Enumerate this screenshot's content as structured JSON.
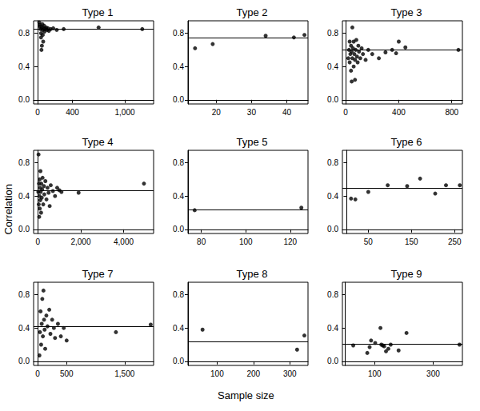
{
  "xlabel": "Sample size",
  "ylabel": "Correlation",
  "chart_data": [
    {
      "type": "scatter",
      "title": "Type 1",
      "color": "#000000",
      "reference_line": 0.85,
      "x": [
        20,
        25,
        30,
        35,
        40,
        40,
        45,
        50,
        50,
        55,
        60,
        60,
        65,
        70,
        75,
        80,
        90,
        100,
        110,
        120,
        130,
        150,
        180,
        220,
        300,
        700,
        1200
      ],
      "values": [
        0.93,
        0.9,
        0.88,
        0.85,
        0.8,
        0.75,
        0.6,
        0.65,
        0.87,
        0.91,
        0.84,
        0.78,
        0.7,
        0.86,
        0.89,
        0.82,
        0.85,
        0.87,
        0.84,
        0.86,
        0.83,
        0.85,
        0.86,
        0.84,
        0.85,
        0.87,
        0.85
      ],
      "xlim": [
        -45,
        1330
      ],
      "xticks": [
        0,
        400,
        {
          "value": 1000,
          "label": "1,000"
        }
      ],
      "ylim": [
        -0.05,
        0.95
      ],
      "yticks": [
        {
          "value": 0,
          "label": "0.0"
        },
        0.4,
        0.8
      ]
    },
    {
      "type": "scatter",
      "title": "Type 2",
      "color": "#000000",
      "reference_line": 0.75,
      "x": [
        14,
        19,
        34,
        42,
        45
      ],
      "values": [
        0.62,
        0.67,
        0.77,
        0.75,
        0.78
      ],
      "xlim": [
        12,
        46
      ],
      "xticks": [
        20,
        30,
        40
      ],
      "ylim": [
        -0.05,
        0.95
      ],
      "yticks": [
        {
          "value": 0,
          "label": "0.0"
        },
        0.4,
        0.8
      ]
    },
    {
      "type": "scatter",
      "title": "Type 3",
      "color": "#000000",
      "reference_line": 0.6,
      "x": [
        20,
        25,
        30,
        30,
        35,
        40,
        40,
        45,
        45,
        50,
        50,
        55,
        60,
        60,
        65,
        70,
        70,
        75,
        80,
        85,
        90,
        95,
        100,
        110,
        120,
        130,
        150,
        170,
        200,
        250,
        300,
        350,
        380,
        400,
        450,
        850
      ],
      "values": [
        0.5,
        0.6,
        0.45,
        0.7,
        0.55,
        0.35,
        0.65,
        0.22,
        0.58,
        0.5,
        0.87,
        0.62,
        0.4,
        0.7,
        0.55,
        0.24,
        0.48,
        0.6,
        0.72,
        0.52,
        0.45,
        0.65,
        0.58,
        0.5,
        0.62,
        0.55,
        0.48,
        0.6,
        0.55,
        0.5,
        0.57,
        0.6,
        0.56,
        0.7,
        0.63,
        0.6
      ],
      "xlim": [
        -25,
        880
      ],
      "xticks": [
        0,
        400,
        800
      ],
      "ylim": [
        -0.05,
        0.95
      ],
      "yticks": [
        {
          "value": 0,
          "label": "0.0"
        },
        0.4,
        0.8
      ]
    },
    {
      "type": "scatter",
      "title": "Type 4",
      "color": "#000000",
      "reference_line": 0.47,
      "x": [
        20,
        30,
        40,
        50,
        60,
        70,
        80,
        90,
        100,
        110,
        120,
        130,
        150,
        160,
        180,
        200,
        220,
        250,
        280,
        300,
        350,
        400,
        450,
        500,
        550,
        600,
        700,
        800,
        900,
        1000,
        1100,
        1900,
        4950
      ],
      "values": [
        0.45,
        0.9,
        0.3,
        0.55,
        0.15,
        0.4,
        0.6,
        0.25,
        0.5,
        0.35,
        0.7,
        0.45,
        0.2,
        0.55,
        0.38,
        0.48,
        0.62,
        0.3,
        0.52,
        0.42,
        0.58,
        0.36,
        0.5,
        0.44,
        0.28,
        0.53,
        0.46,
        0.4,
        0.5,
        0.47,
        0.45,
        0.44,
        0.55
      ],
      "xlim": [
        -200,
        5400
      ],
      "xticks": [
        0,
        {
          "value": 2000,
          "label": "2,000"
        },
        {
          "value": 4000,
          "label": "4,000"
        }
      ],
      "ylim": [
        -0.05,
        0.95
      ],
      "yticks": [
        {
          "value": 0,
          "label": "0.0"
        },
        0.4,
        0.8
      ]
    },
    {
      "type": "scatter",
      "title": "Type 5",
      "color": "#000000",
      "reference_line": 0.24,
      "x": [
        77,
        125
      ],
      "values": [
        0.23,
        0.26
      ],
      "xlim": [
        74,
        128
      ],
      "xticks": [
        80,
        100,
        120
      ],
      "ylim": [
        -0.05,
        0.95
      ],
      "yticks": [
        {
          "value": 0,
          "label": "0.0"
        },
        0.4,
        0.8
      ]
    },
    {
      "type": "scatter",
      "title": "Type 6",
      "color": "#000000",
      "reference_line": 0.5,
      "x": [
        10,
        20,
        50,
        95,
        140,
        170,
        205,
        230,
        262
      ],
      "values": [
        0.37,
        0.36,
        0.45,
        0.53,
        0.52,
        0.61,
        0.43,
        0.53,
        0.53
      ],
      "xlim": [
        -10,
        268
      ],
      "xticks": [
        50,
        150,
        250
      ],
      "ylim": [
        -0.05,
        0.95
      ],
      "yticks": [
        {
          "value": 0,
          "label": "0.0"
        },
        0.4,
        0.8
      ]
    },
    {
      "type": "scatter",
      "title": "Type 7",
      "color": "#000000",
      "reference_line": 0.42,
      "x": [
        30,
        40,
        50,
        60,
        70,
        80,
        90,
        100,
        110,
        120,
        130,
        150,
        170,
        200,
        220,
        250,
        280,
        300,
        350,
        400,
        450,
        500,
        1350,
        1950
      ],
      "values": [
        0.07,
        0.35,
        0.6,
        0.2,
        0.45,
        0.75,
        0.3,
        0.85,
        0.5,
        0.38,
        0.15,
        0.55,
        0.42,
        0.62,
        0.33,
        0.5,
        0.4,
        0.28,
        0.45,
        0.3,
        0.4,
        0.25,
        0.35,
        0.44
      ],
      "xlim": [
        -70,
        2000
      ],
      "xticks": [
        0,
        500,
        {
          "value": 1500,
          "label": "1,500"
        }
      ],
      "ylim": [
        -0.05,
        0.95
      ],
      "yticks": [
        {
          "value": 0,
          "label": "0.0"
        },
        0.4,
        0.8
      ]
    },
    {
      "type": "scatter",
      "title": "Type 8",
      "color": "#000000",
      "reference_line": 0.24,
      "x": [
        60,
        320,
        340
      ],
      "values": [
        0.38,
        0.14,
        0.31
      ],
      "xlim": [
        20,
        350
      ],
      "xticks": [
        100,
        200,
        300
      ],
      "ylim": [
        -0.05,
        0.95
      ],
      "yticks": [
        {
          "value": 0,
          "label": "0.0"
        },
        0.4,
        0.8
      ]
    },
    {
      "type": "scatter",
      "title": "Type 9",
      "color": "#000000",
      "reference_line": 0.21,
      "x": [
        27,
        75,
        83,
        88,
        102,
        120,
        123,
        128,
        133,
        139,
        147,
        155,
        182,
        209,
        390
      ],
      "values": [
        0.19,
        0.1,
        0.17,
        0.25,
        0.22,
        0.4,
        0.2,
        0.19,
        0.18,
        0.12,
        0.15,
        0.2,
        0.13,
        0.34,
        0.2
      ],
      "xlim": [
        -10,
        400
      ],
      "xticks": [
        100,
        300
      ],
      "ylim": [
        -0.05,
        0.95
      ],
      "yticks": [
        {
          "value": 0,
          "label": "0.0"
        },
        0.4,
        0.8
      ]
    }
  ]
}
